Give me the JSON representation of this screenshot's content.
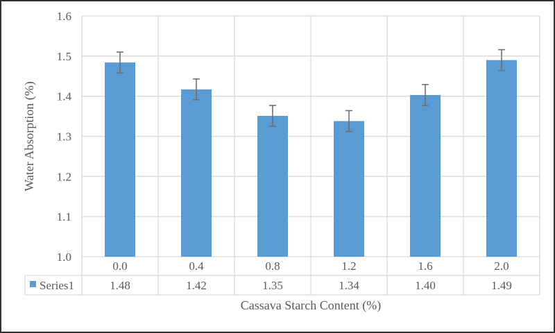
{
  "chart_data": {
    "type": "bar",
    "title": "",
    "xlabel": "Cassava Starch Content (%)",
    "ylabel": "Water Absorption (%)",
    "ylim": [
      1.0,
      1.6
    ],
    "yticks": [
      "1.0",
      "1.1",
      "1.2",
      "1.3",
      "1.4",
      "1.5",
      "1.6"
    ],
    "categories": [
      "0.0",
      "0.4",
      "0.8",
      "1.2",
      "1.6",
      "2.0"
    ],
    "series": [
      {
        "name": "Series1",
        "values": [
          1.484,
          1.417,
          1.351,
          1.338,
          1.403,
          1.49
        ],
        "error": [
          0.026,
          0.026,
          0.026,
          0.026,
          0.026,
          0.026
        ],
        "color": "#5b9bd5"
      }
    ],
    "data_table": {
      "legend": "Series1",
      "values": [
        "1.48",
        "1.42",
        "1.35",
        "1.34",
        "1.40",
        "1.49"
      ]
    },
    "grid": true,
    "legend": "data-table"
  }
}
